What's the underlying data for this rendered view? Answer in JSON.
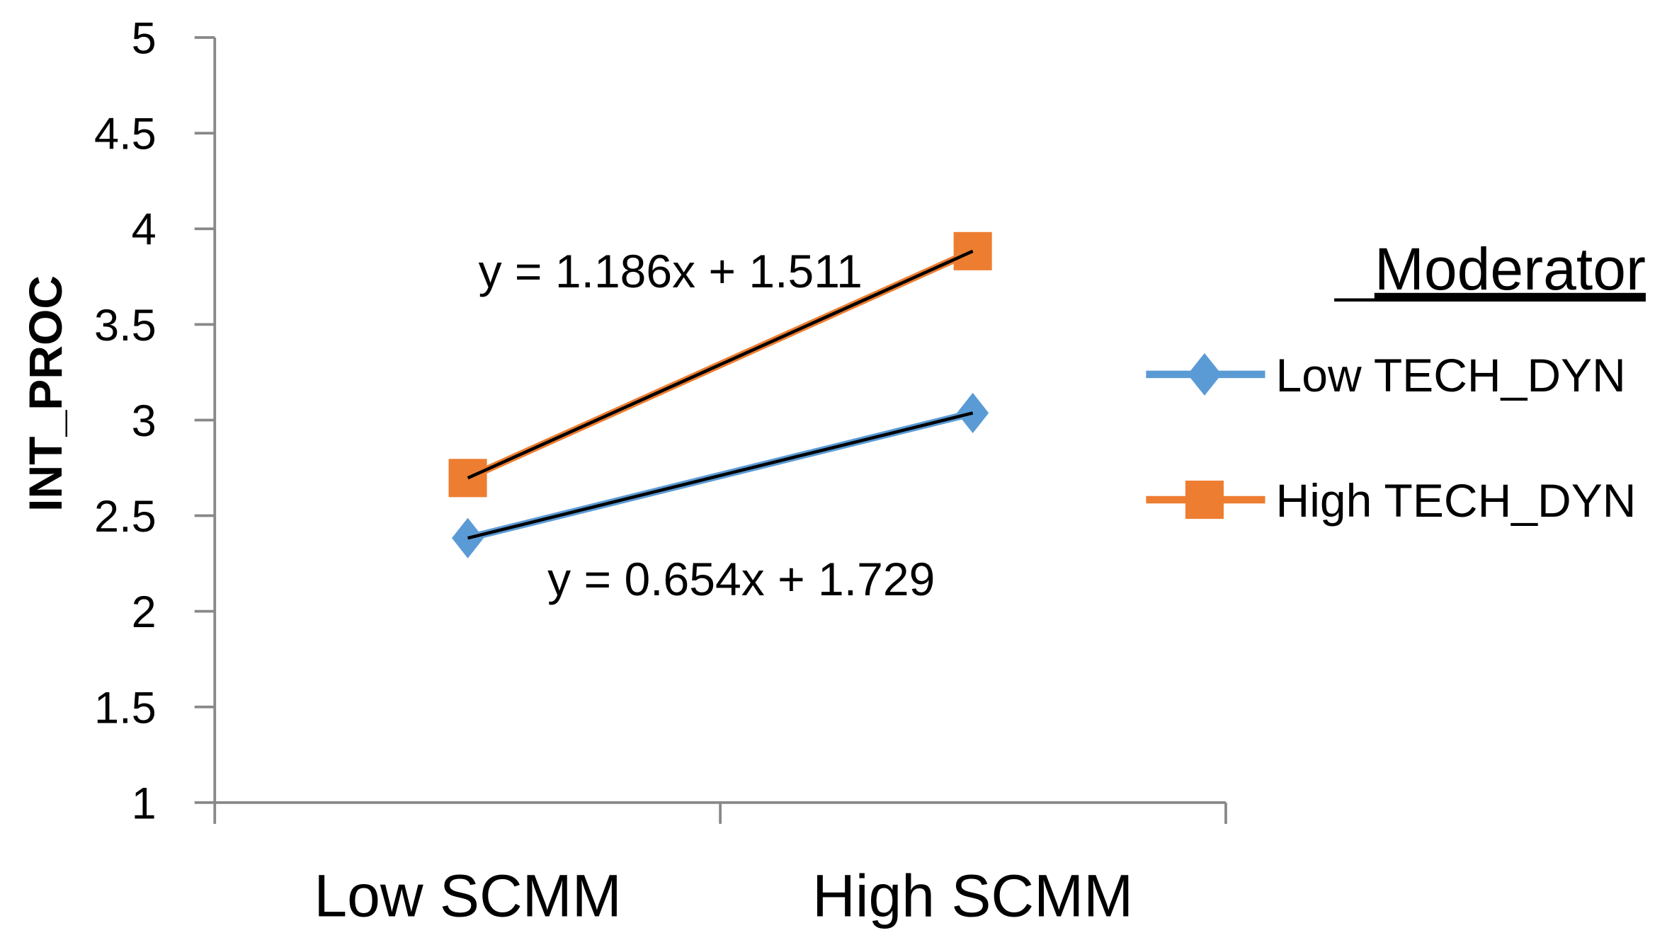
{
  "chart_data": {
    "type": "line",
    "title": "",
    "xlabel": "",
    "ylabel": "INT_PROC",
    "categories": [
      "Low SCMM",
      "High SCMM"
    ],
    "ylim": [
      1,
      5
    ],
    "yticks": [
      "1",
      "1.5",
      "2",
      "2.5",
      "3",
      "3.5",
      "4",
      "4.5",
      "5"
    ],
    "grid": false,
    "legend": {
      "title": "Moderator",
      "placement": "right"
    },
    "series": [
      {
        "name": "Low TECH_DYN",
        "values": [
          2.383,
          3.037
        ],
        "color": "#5B9BD5",
        "marker": "diamond",
        "trendline": {
          "equation": "y = 0.654x + 1.729",
          "slope": 0.654,
          "intercept": 1.729
        }
      },
      {
        "name": "High TECH_DYN",
        "values": [
          2.697,
          3.883
        ],
        "color": "#ED7D31",
        "marker": "square",
        "trendline": {
          "equation": "y = 1.186x + 1.511",
          "slope": 1.186,
          "intercept": 1.511
        }
      }
    ]
  }
}
